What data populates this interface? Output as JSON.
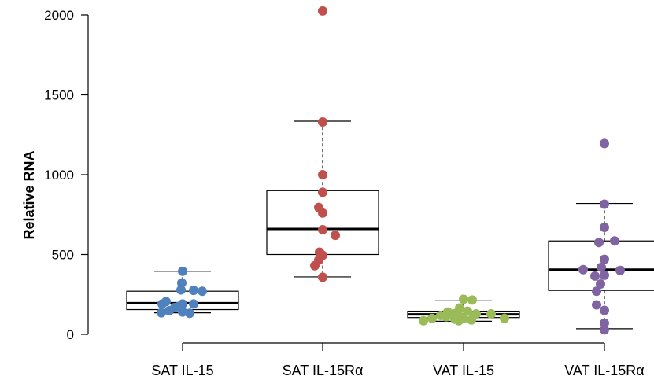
{
  "chart_data": {
    "type": "box",
    "title": "",
    "xlabel": "",
    "ylabel": "Relative RNA",
    "ylim": [
      0,
      2000
    ],
    "yticks": [
      0,
      500,
      1000,
      1500,
      2000
    ],
    "grid": false,
    "legend": "none",
    "categories": [
      "SAT IL-15",
      "SAT IL-15Rα",
      "VAT IL-15",
      "VAT IL-15Rα"
    ],
    "boxes": [
      {
        "category": "SAT IL-15",
        "color": "#4f81bd",
        "whisker_low": 135,
        "q1": 155,
        "median": 195,
        "q3": 270,
        "whisker_high": 395,
        "points": [
          {
            "x": 0.0,
            "y": 395
          },
          {
            "x": -0.01,
            "y": 322
          },
          {
            "x": 0.14,
            "y": 275
          },
          {
            "x": -0.02,
            "y": 278
          },
          {
            "x": 0.25,
            "y": 270
          },
          {
            "x": -0.21,
            "y": 205
          },
          {
            "x": -0.26,
            "y": 190
          },
          {
            "x": -0.05,
            "y": 175
          },
          {
            "x": 0.0,
            "y": 190
          },
          {
            "x": 0.14,
            "y": 190
          },
          {
            "x": -0.1,
            "y": 168
          },
          {
            "x": -0.27,
            "y": 135
          },
          {
            "x": -0.17,
            "y": 148
          },
          {
            "x": 0.0,
            "y": 140
          },
          {
            "x": 0.09,
            "y": 132
          }
        ]
      },
      {
        "category": "SAT IL-15Rα",
        "color": "#c0504d",
        "whisker_low": 360,
        "q1": 500,
        "median": 660,
        "q3": 900,
        "whisker_high": 1335,
        "points": [
          {
            "x": 0.0,
            "y": 2025
          },
          {
            "x": 0.0,
            "y": 1330
          },
          {
            "x": 0.0,
            "y": 1000
          },
          {
            "x": 0.0,
            "y": 890
          },
          {
            "x": -0.05,
            "y": 795
          },
          {
            "x": 0.0,
            "y": 760
          },
          {
            "x": 0.0,
            "y": 655
          },
          {
            "x": 0.16,
            "y": 620
          },
          {
            "x": -0.04,
            "y": 515
          },
          {
            "x": 0.0,
            "y": 495
          },
          {
            "x": -0.05,
            "y": 465
          },
          {
            "x": -0.1,
            "y": 430
          },
          {
            "x": 0.0,
            "y": 358
          }
        ]
      },
      {
        "category": "VAT IL-15",
        "color": "#9bbb59",
        "whisker_low": 82,
        "q1": 105,
        "median": 125,
        "q3": 145,
        "whisker_high": 210,
        "points": [
          {
            "x": 0.0,
            "y": 220
          },
          {
            "x": 0.11,
            "y": 215
          },
          {
            "x": -0.05,
            "y": 165
          },
          {
            "x": 0.05,
            "y": 145
          },
          {
            "x": -0.2,
            "y": 140
          },
          {
            "x": -0.11,
            "y": 130
          },
          {
            "x": 0.16,
            "y": 128
          },
          {
            "x": 0.35,
            "y": 128
          },
          {
            "x": -0.29,
            "y": 118
          },
          {
            "x": -0.22,
            "y": 110
          },
          {
            "x": -0.05,
            "y": 112
          },
          {
            "x": -0.4,
            "y": 100
          },
          {
            "x": -0.11,
            "y": 95
          },
          {
            "x": 0.0,
            "y": 100
          },
          {
            "x": 0.1,
            "y": 90
          },
          {
            "x": -0.51,
            "y": 85
          },
          {
            "x": -0.06,
            "y": 85
          },
          {
            "x": 0.52,
            "y": 100
          }
        ]
      },
      {
        "category": "VAT IL-15Rα",
        "color": "#8064a2",
        "whisker_low": 35,
        "q1": 275,
        "median": 405,
        "q3": 585,
        "whisker_high": 820,
        "points": [
          {
            "x": 0.0,
            "y": 1195
          },
          {
            "x": 0.0,
            "y": 815
          },
          {
            "x": 0.0,
            "y": 670
          },
          {
            "x": 0.13,
            "y": 585
          },
          {
            "x": -0.07,
            "y": 575
          },
          {
            "x": 0.0,
            "y": 470
          },
          {
            "x": -0.04,
            "y": 420
          },
          {
            "x": -0.27,
            "y": 405
          },
          {
            "x": 0.2,
            "y": 400
          },
          {
            "x": -0.12,
            "y": 365
          },
          {
            "x": 0.0,
            "y": 370
          },
          {
            "x": -0.05,
            "y": 315
          },
          {
            "x": -0.1,
            "y": 270
          },
          {
            "x": -0.1,
            "y": 185
          },
          {
            "x": 0.0,
            "y": 150
          },
          {
            "x": 0.0,
            "y": 70
          },
          {
            "x": 0.0,
            "y": 28
          }
        ]
      }
    ]
  }
}
